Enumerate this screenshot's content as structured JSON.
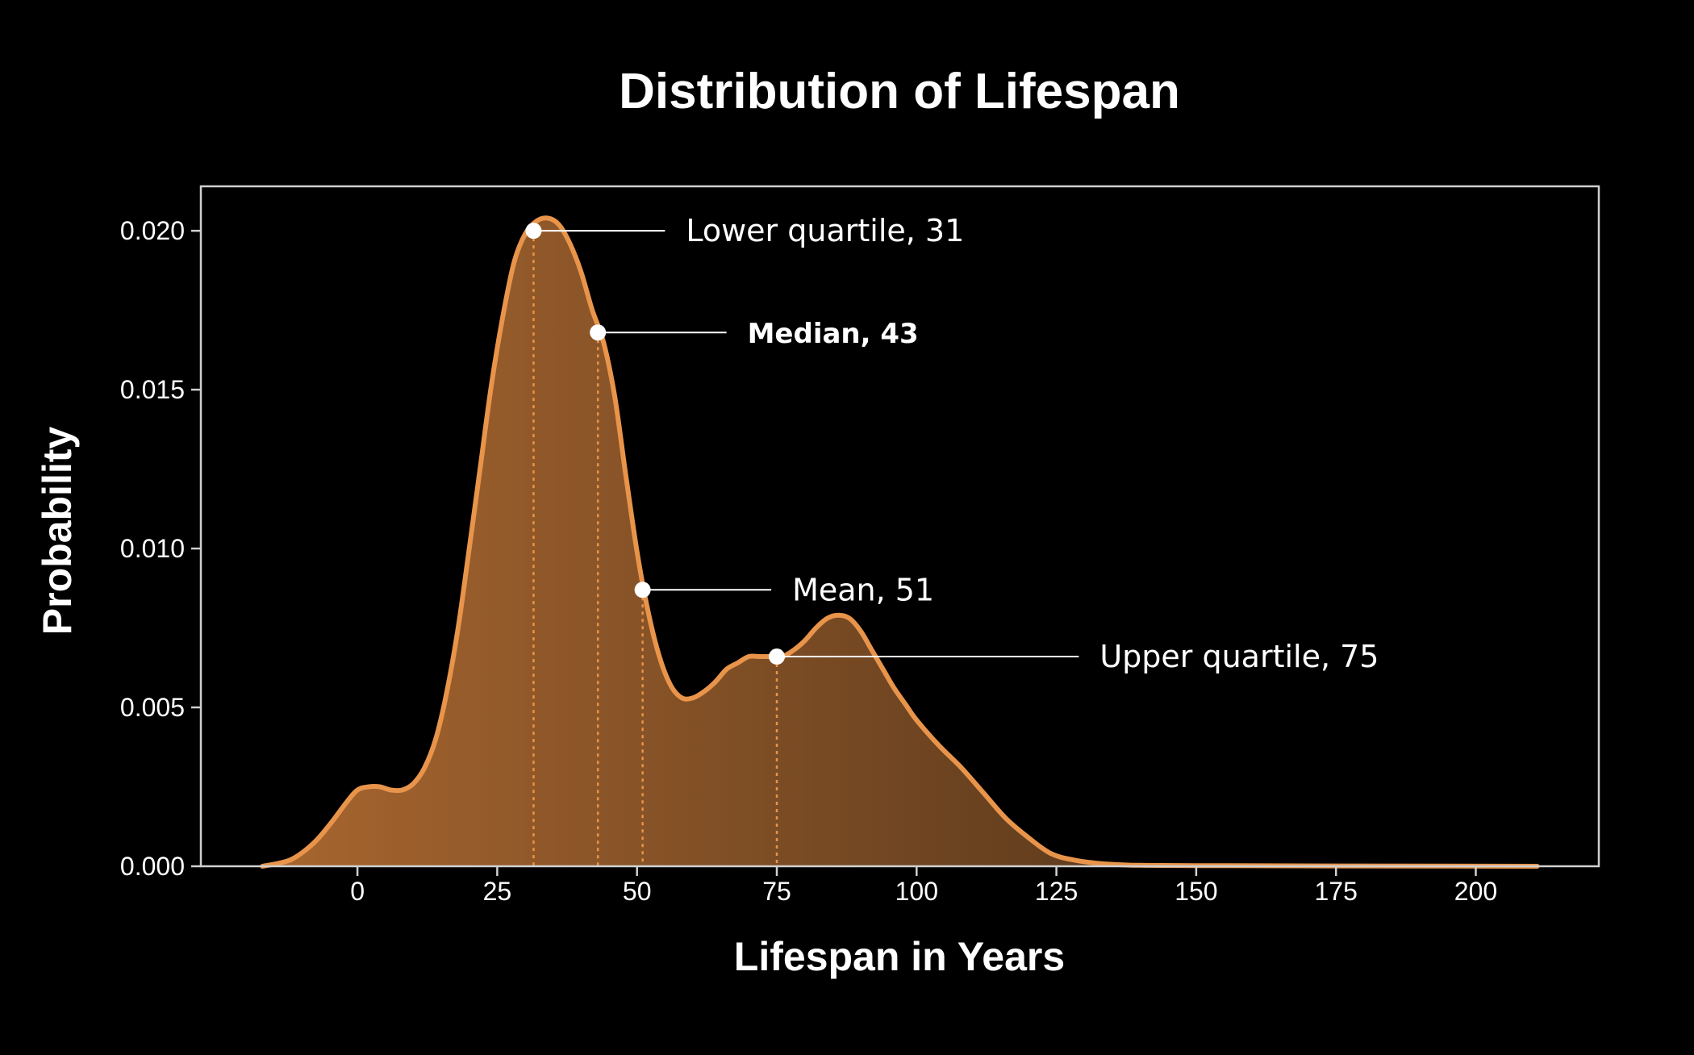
{
  "colors": {
    "background": "#000000",
    "curve": "#e8944a",
    "frame": "#d0d0d0",
    "fill_left": "#a8662f",
    "fill_right": "#3a2614",
    "text": "#ffffff"
  },
  "chart_data": {
    "type": "area",
    "title": "Distribution of Lifespan",
    "xlabel": "Lifespan in Years",
    "ylabel": "Probability",
    "xlim": [
      -28,
      222
    ],
    "ylim": [
      0,
      0.0214
    ],
    "x_ticks": [
      0,
      25,
      50,
      75,
      100,
      125,
      150,
      175,
      200
    ],
    "y_ticks": [
      0.0,
      0.005,
      0.01,
      0.015,
      0.02
    ],
    "y_tick_labels": [
      "0.000",
      "0.005",
      "0.010",
      "0.015",
      "0.020"
    ],
    "grid": false,
    "series": [
      {
        "x": [
          -17,
          -12,
          -8,
          -5,
          -2,
          0,
          2,
          4,
          6,
          8,
          10,
          12,
          14,
          16,
          18,
          20,
          22,
          24,
          26,
          28,
          30,
          32,
          34,
          36,
          38,
          40,
          42,
          44,
          46,
          48,
          50,
          52,
          54,
          56,
          58,
          60,
          62,
          64,
          66,
          68,
          70,
          72,
          74,
          76,
          78,
          80,
          82,
          84,
          86,
          88,
          90,
          92,
          94,
          96,
          98,
          100,
          104,
          108,
          112,
          116,
          120,
          124,
          128,
          132,
          136,
          140,
          150,
          175,
          211
        ],
        "y": [
          0.0,
          0.0002,
          0.0007,
          0.0013,
          0.002,
          0.0024,
          0.0025,
          0.0025,
          0.0024,
          0.0024,
          0.0026,
          0.0031,
          0.004,
          0.0055,
          0.0075,
          0.01,
          0.0126,
          0.0152,
          0.0173,
          0.019,
          0.0199,
          0.0203,
          0.0204,
          0.0202,
          0.0196,
          0.0187,
          0.0175,
          0.0165,
          0.0148,
          0.0123,
          0.0099,
          0.008,
          0.0066,
          0.0057,
          0.0053,
          0.0053,
          0.0055,
          0.0058,
          0.0062,
          0.0064,
          0.0066,
          0.0066,
          0.0066,
          0.0066,
          0.0068,
          0.0071,
          0.0075,
          0.0078,
          0.0079,
          0.0078,
          0.0074,
          0.0068,
          0.0062,
          0.0056,
          0.0051,
          0.0046,
          0.0038,
          0.0031,
          0.0023,
          0.0015,
          0.0009,
          0.0004,
          0.0002,
          0.0001,
          5e-05,
          3e-05,
          2e-05,
          1e-05,
          0.0
        ]
      }
    ],
    "annotations": [
      {
        "label": "Lower quartile, 31",
        "x": 31.5,
        "y": 0.02,
        "label_x": 55,
        "bold": false
      },
      {
        "label": "Median, 43",
        "x": 43,
        "y": 0.0168,
        "label_x": 66,
        "bold": true
      },
      {
        "label": "Mean, 51",
        "x": 51,
        "y": 0.0087,
        "label_x": 74,
        "bold": false
      },
      {
        "label": "Upper quartile, 75",
        "x": 75,
        "y": 0.0066,
        "label_x": 129,
        "bold": false
      }
    ]
  }
}
